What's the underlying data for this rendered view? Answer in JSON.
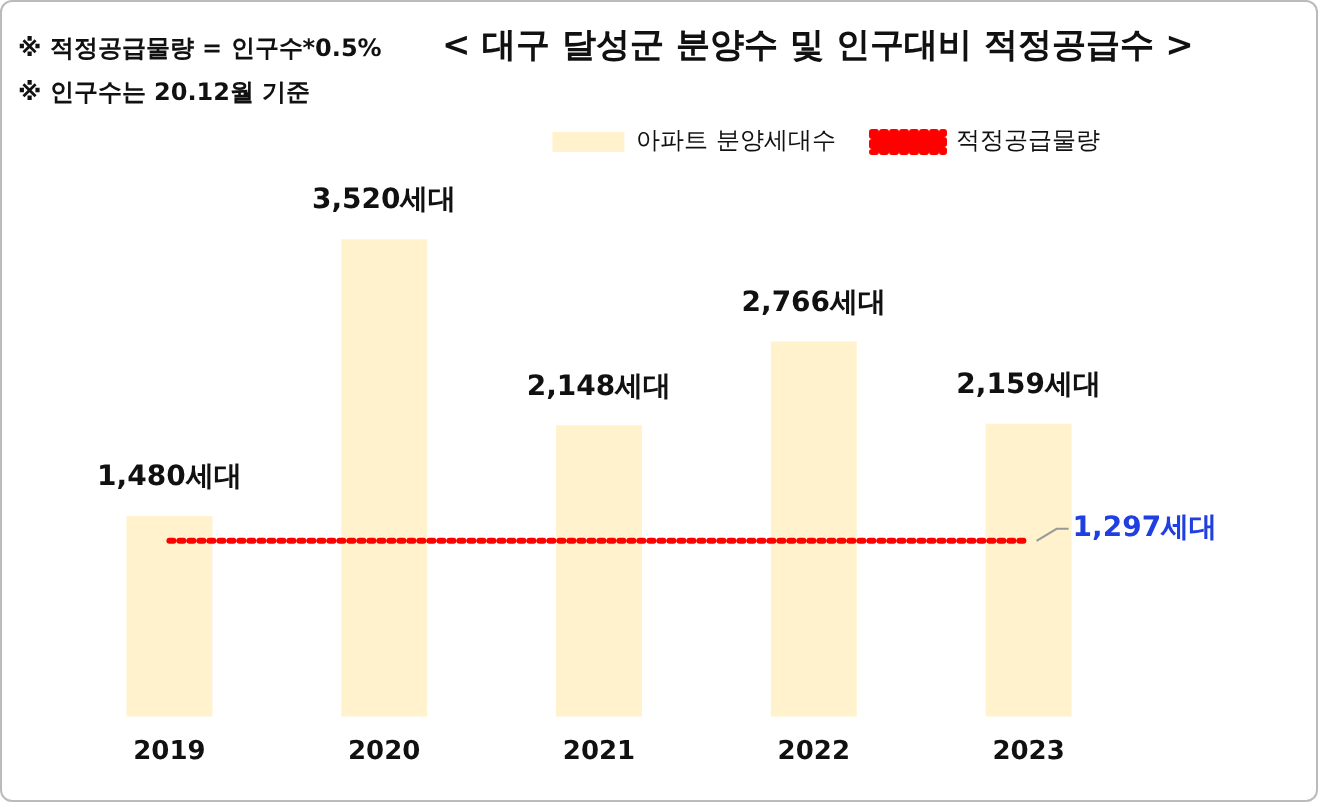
{
  "chart_data": {
    "type": "bar",
    "title": "< 대구 달성군 분양수 및 인구대비 적정공급수 >",
    "annotations": [
      "※ 적정공급물량 = 인구수*0.5%",
      "※ 인구수는 20.12월 기준"
    ],
    "categories": [
      "2019",
      "2020",
      "2021",
      "2022",
      "2023"
    ],
    "series": [
      {
        "name": "아파트 분양세대수",
        "color": "#fff2cc",
        "values": [
          1480,
          3520,
          2148,
          2766,
          2159
        ],
        "value_labels": [
          "1,480세대",
          "3,520세대",
          "2,148세대",
          "2,766세대",
          "2,159세대"
        ]
      },
      {
        "name": "적정공급물량",
        "type": "line",
        "color": "#ff0000",
        "line_style": "dotted",
        "marker": "none",
        "values": [
          1297,
          1297,
          1297,
          1297,
          1297
        ],
        "value_labels": [
          null,
          null,
          null,
          null,
          "1,297세대"
        ]
      }
    ],
    "legend": "top right",
    "grid": false
  }
}
